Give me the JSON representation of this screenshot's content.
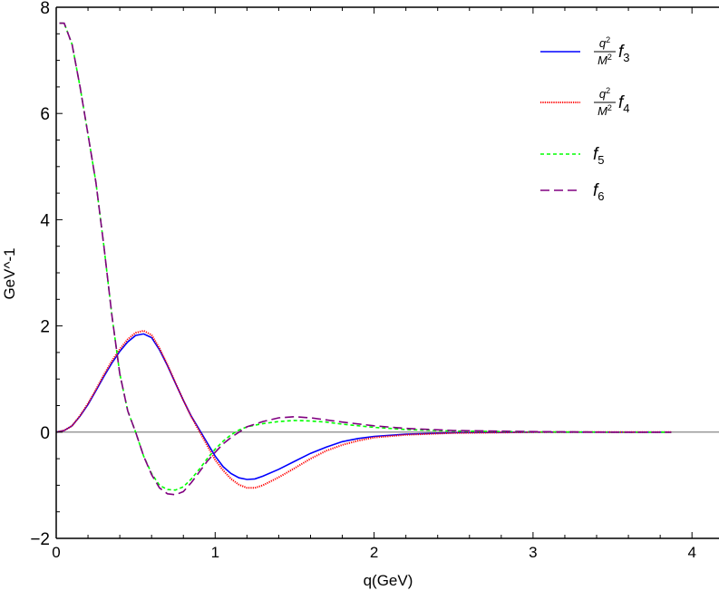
{
  "chart_data": {
    "type": "line",
    "title": "",
    "xlabel": "q(GeV)",
    "ylabel": "GeV^-1",
    "xlim": [
      0,
      4.17
    ],
    "ylim": [
      -2,
      8
    ],
    "xticks": [
      0,
      1,
      2,
      3,
      4
    ],
    "yticks": [
      -2,
      0,
      2,
      4,
      6,
      8
    ],
    "xtick_labels": [
      "0",
      "1",
      "2",
      "3",
      "4"
    ],
    "ytick_labels": [
      "−2",
      "0",
      "2",
      "4",
      "6",
      "8"
    ],
    "grid": false,
    "zero_line": true,
    "legend_position": "top-right",
    "series": [
      {
        "name": {
          "num_base": "q",
          "num_sup": "2",
          "den_base": "M",
          "den_sup": "2",
          "symbol": "f",
          "sub": "3"
        },
        "color": "#0000ff",
        "style": "solid",
        "x": [
          0,
          0.05,
          0.1,
          0.15,
          0.2,
          0.25,
          0.3,
          0.35,
          0.4,
          0.45,
          0.5,
          0.55,
          0.6,
          0.65,
          0.7,
          0.75,
          0.8,
          0.85,
          0.9,
          0.95,
          1.0,
          1.05,
          1.1,
          1.15,
          1.2,
          1.25,
          1.3,
          1.4,
          1.5,
          1.6,
          1.7,
          1.8,
          1.9,
          2.0,
          2.2,
          2.5,
          3.0,
          3.5,
          3.87
        ],
        "y": [
          0,
          0.03,
          0.12,
          0.3,
          0.52,
          0.78,
          1.05,
          1.3,
          1.52,
          1.7,
          1.82,
          1.85,
          1.78,
          1.55,
          1.25,
          0.92,
          0.6,
          0.3,
          0.05,
          -0.2,
          -0.45,
          -0.65,
          -0.78,
          -0.86,
          -0.89,
          -0.88,
          -0.83,
          -0.7,
          -0.55,
          -0.4,
          -0.28,
          -0.18,
          -0.12,
          -0.08,
          -0.04,
          -0.01,
          0,
          0,
          0
        ]
      },
      {
        "name": {
          "num_base": "q",
          "num_sup": "2",
          "den_base": "M",
          "den_sup": "2",
          "symbol": "f",
          "sub": "4"
        },
        "color": "#ff0000",
        "style": "dotted",
        "x": [
          0,
          0.05,
          0.1,
          0.15,
          0.2,
          0.25,
          0.3,
          0.35,
          0.4,
          0.45,
          0.5,
          0.55,
          0.6,
          0.65,
          0.7,
          0.75,
          0.8,
          0.85,
          0.9,
          0.95,
          1.0,
          1.05,
          1.1,
          1.15,
          1.2,
          1.25,
          1.3,
          1.4,
          1.5,
          1.6,
          1.7,
          1.8,
          1.9,
          2.0,
          2.2,
          2.5,
          3.0,
          3.5,
          3.87
        ],
        "y": [
          0,
          0.03,
          0.12,
          0.31,
          0.54,
          0.8,
          1.08,
          1.34,
          1.56,
          1.75,
          1.87,
          1.91,
          1.83,
          1.58,
          1.27,
          0.93,
          0.6,
          0.29,
          0.02,
          -0.25,
          -0.52,
          -0.72,
          -0.88,
          -0.99,
          -1.05,
          -1.05,
          -1.0,
          -0.85,
          -0.68,
          -0.5,
          -0.35,
          -0.24,
          -0.16,
          -0.1,
          -0.05,
          -0.015,
          0,
          0,
          0
        ]
      },
      {
        "name": {
          "symbol": "f",
          "sub": "5"
        },
        "color": "#00ff00",
        "style": "short-dashed",
        "x": [
          0.02,
          0.05,
          0.1,
          0.15,
          0.2,
          0.25,
          0.3,
          0.35,
          0.4,
          0.45,
          0.5,
          0.55,
          0.6,
          0.65,
          0.7,
          0.75,
          0.8,
          0.85,
          0.9,
          0.95,
          1.0,
          1.05,
          1.1,
          1.15,
          1.2,
          1.3,
          1.4,
          1.5,
          1.6,
          1.7,
          1.8,
          2.0,
          2.2,
          2.5,
          3.0,
          3.5,
          3.87
        ],
        "y": [
          7.7,
          7.7,
          7.3,
          6.5,
          5.6,
          4.7,
          3.5,
          2.2,
          1.1,
          0.4,
          0.0,
          -0.45,
          -0.78,
          -1.0,
          -1.08,
          -1.09,
          -1.03,
          -0.88,
          -0.7,
          -0.5,
          -0.32,
          -0.17,
          -0.05,
          0.04,
          0.1,
          0.16,
          0.2,
          0.22,
          0.21,
          0.19,
          0.15,
          0.09,
          0.05,
          0.02,
          0.005,
          0,
          0
        ]
      },
      {
        "name": {
          "symbol": "f",
          "sub": "6"
        },
        "color": "#800080",
        "style": "long-dashed",
        "x": [
          0.02,
          0.05,
          0.1,
          0.15,
          0.2,
          0.25,
          0.3,
          0.35,
          0.4,
          0.45,
          0.5,
          0.55,
          0.6,
          0.65,
          0.7,
          0.75,
          0.8,
          0.85,
          0.9,
          0.95,
          1.0,
          1.05,
          1.1,
          1.15,
          1.2,
          1.3,
          1.4,
          1.5,
          1.6,
          1.7,
          1.8,
          2.0,
          2.2,
          2.5,
          3.0,
          3.5,
          3.87
        ],
        "y": [
          7.7,
          7.7,
          7.3,
          6.5,
          5.6,
          4.7,
          3.5,
          2.2,
          1.1,
          0.4,
          0.0,
          -0.45,
          -0.8,
          -1.05,
          -1.16,
          -1.18,
          -1.12,
          -0.95,
          -0.75,
          -0.55,
          -0.38,
          -0.22,
          -0.1,
          0.0,
          0.1,
          0.2,
          0.27,
          0.29,
          0.27,
          0.23,
          0.19,
          0.12,
          0.07,
          0.03,
          0.01,
          0,
          0
        ]
      }
    ]
  }
}
